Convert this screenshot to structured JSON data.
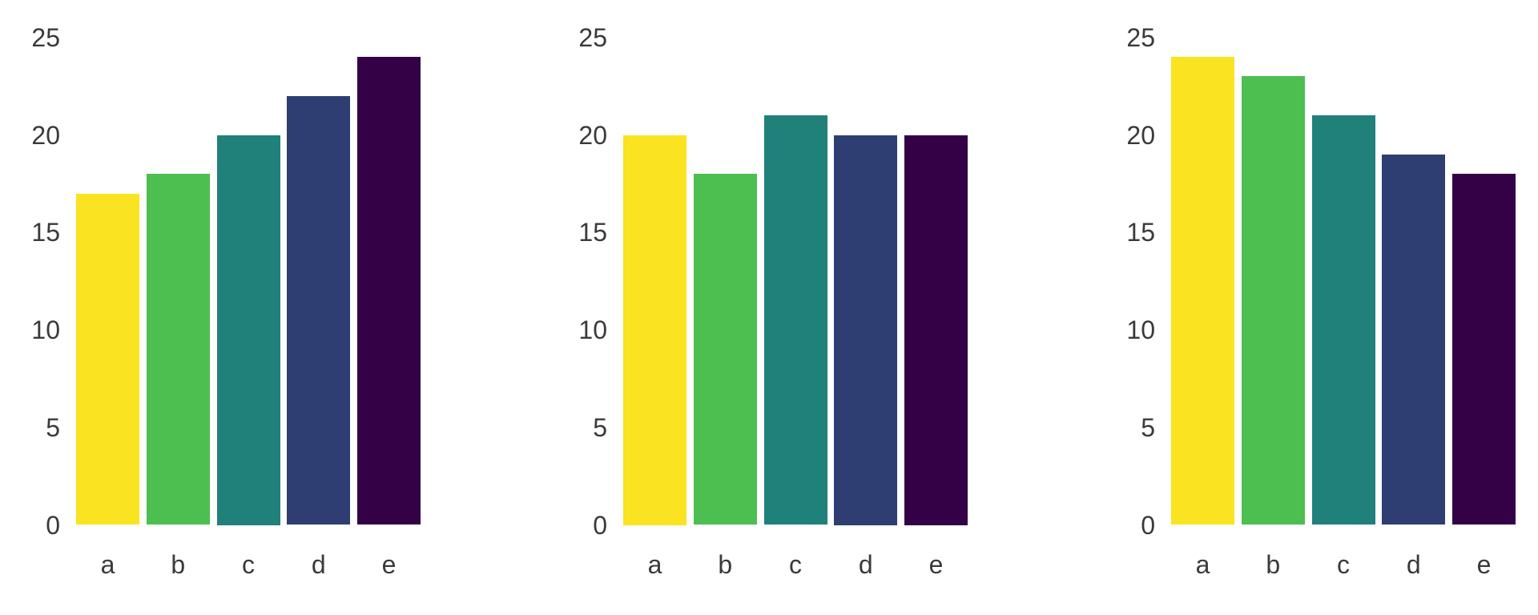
{
  "figure": {
    "background_color": "#ffffff",
    "label_color": "#3a3a3a"
  },
  "chart_data": [
    {
      "type": "bar",
      "title": "",
      "xlabel": "",
      "ylabel": "",
      "categories": [
        "a",
        "b",
        "c",
        "d",
        "e"
      ],
      "values": [
        17,
        18,
        20,
        22,
        24
      ],
      "yticks": [
        "0",
        "5",
        "10",
        "15",
        "20",
        "25"
      ],
      "ylim": [
        0,
        25
      ],
      "bar_colors": [
        "#fae320",
        "#4dbe50",
        "#20807a",
        "#2e3e73",
        "#340147"
      ],
      "grid": false,
      "legend": false
    },
    {
      "type": "bar",
      "title": "",
      "xlabel": "",
      "ylabel": "",
      "categories": [
        "a",
        "b",
        "c",
        "d",
        "e"
      ],
      "values": [
        20,
        18,
        21,
        20,
        20
      ],
      "yticks": [
        "0",
        "5",
        "10",
        "15",
        "20",
        "25"
      ],
      "ylim": [
        0,
        25
      ],
      "bar_colors": [
        "#fae320",
        "#4dbe50",
        "#20807a",
        "#2e3e73",
        "#340147"
      ],
      "grid": false,
      "legend": false
    },
    {
      "type": "bar",
      "title": "",
      "xlabel": "",
      "ylabel": "",
      "categories": [
        "a",
        "b",
        "c",
        "d",
        "e"
      ],
      "values": [
        24,
        23,
        21,
        19,
        18
      ],
      "yticks": [
        "0",
        "5",
        "10",
        "15",
        "20",
        "25"
      ],
      "ylim": [
        0,
        25
      ],
      "bar_colors": [
        "#fae320",
        "#4dbe50",
        "#20807a",
        "#2e3e73",
        "#340147"
      ],
      "grid": false,
      "legend": false
    }
  ]
}
